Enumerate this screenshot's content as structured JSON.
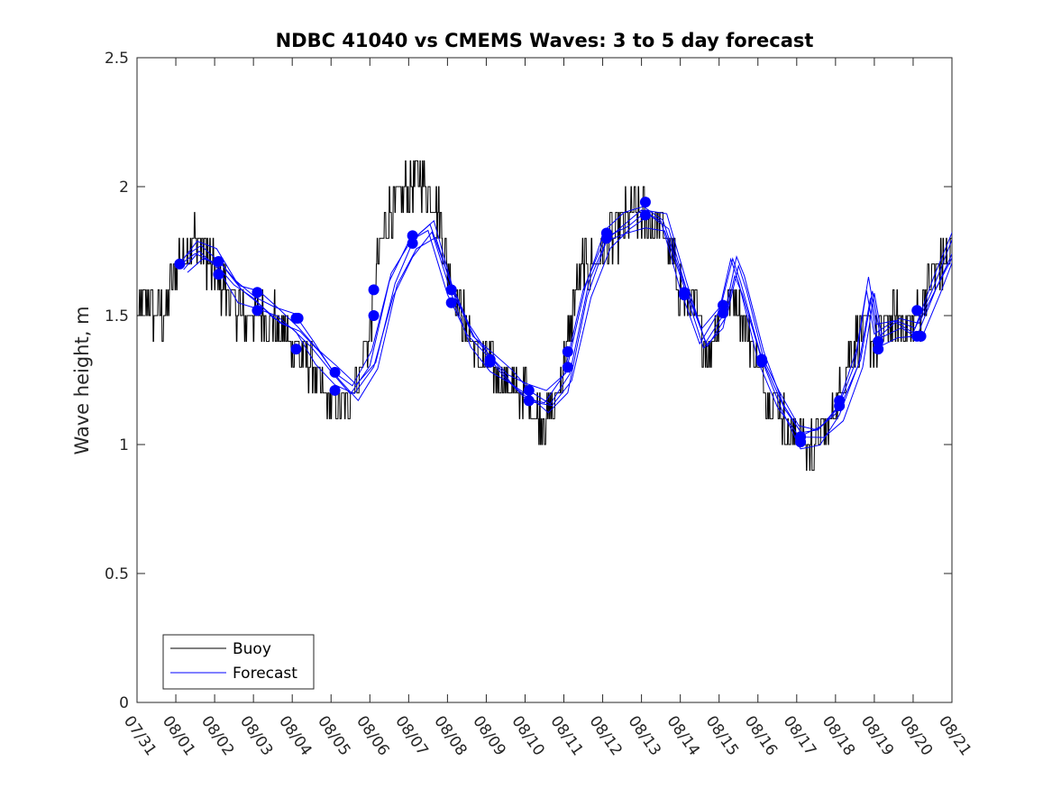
{
  "chart_data": {
    "type": "line",
    "title": "NDBC 41040 vs CMEMS Waves: 3 to 5 day forecast",
    "xlabel": "",
    "ylabel": "Wave height, m",
    "xlim": [
      0,
      21
    ],
    "ylim": [
      0,
      2.5
    ],
    "x_tick_values": [
      0,
      1,
      2,
      3,
      4,
      5,
      6,
      7,
      8,
      9,
      10,
      11,
      12,
      13,
      14,
      15,
      16,
      17,
      18,
      19,
      20,
      21
    ],
    "x_tick_labels": [
      "07/31",
      "08/01",
      "08/02",
      "08/03",
      "08/04",
      "08/05",
      "08/06",
      "08/07",
      "08/08",
      "08/09",
      "08/10",
      "08/11",
      "08/12",
      "08/13",
      "08/14",
      "08/15",
      "08/16",
      "08/17",
      "08/18",
      "08/19",
      "08/20",
      "08/21"
    ],
    "y_tick_values": [
      0,
      0.5,
      1,
      1.5,
      2,
      2.5
    ],
    "y_tick_labels": [
      "0",
      "0.5",
      "1",
      "1.5",
      "2",
      "2.5"
    ],
    "grid": false,
    "legend": {
      "position": "bottom-left",
      "entries": [
        {
          "label": "Buoy",
          "color": "#000000"
        },
        {
          "label": "Forecast",
          "color": "#0000ff"
        }
      ]
    },
    "colors": {
      "buoy": "#000000",
      "forecast": "#0000ff",
      "markers": "#0000ff",
      "axis": "#262626"
    },
    "series": [
      {
        "name": "Buoy",
        "x": [
          0.0,
          0.25,
          0.5,
          0.75,
          1.0,
          1.25,
          1.5,
          1.75,
          2.0,
          2.25,
          2.5,
          2.75,
          3.0,
          3.25,
          3.5,
          3.75,
          4.0,
          4.25,
          4.5,
          4.75,
          5.0,
          5.25,
          5.5,
          5.75,
          6.0,
          6.25,
          6.5,
          6.75,
          7.0,
          7.25,
          7.5,
          7.75,
          8.0,
          8.25,
          8.5,
          8.75,
          9.0,
          9.25,
          9.5,
          9.75,
          10.0,
          10.25,
          10.5,
          10.75,
          11.0,
          11.25,
          11.5,
          11.75,
          12.0,
          12.25,
          12.5,
          12.75,
          13.0,
          13.25,
          13.5,
          13.75,
          14.0,
          14.25,
          14.5,
          14.75,
          15.0,
          15.25,
          15.5,
          15.75,
          16.0,
          16.25,
          16.5,
          16.75,
          17.0,
          17.25,
          17.5,
          17.75,
          18.0,
          18.25,
          18.5,
          18.75,
          19.0,
          19.25,
          19.5,
          19.75,
          20.0,
          20.25,
          20.5,
          20.75,
          21.0
        ],
        "values": [
          1.5,
          1.55,
          1.5,
          1.5,
          1.7,
          1.75,
          1.8,
          1.75,
          1.65,
          1.6,
          1.55,
          1.5,
          1.5,
          1.48,
          1.5,
          1.42,
          1.4,
          1.35,
          1.3,
          1.2,
          1.15,
          1.15,
          1.2,
          1.3,
          1.45,
          1.75,
          1.9,
          1.95,
          2.0,
          2.05,
          2.0,
          1.9,
          1.7,
          1.55,
          1.45,
          1.35,
          1.3,
          1.28,
          1.25,
          1.2,
          1.2,
          1.12,
          1.1,
          1.15,
          1.3,
          1.55,
          1.7,
          1.7,
          1.75,
          1.8,
          1.85,
          1.9,
          1.9,
          1.85,
          1.85,
          1.75,
          1.6,
          1.55,
          1.45,
          1.35,
          1.5,
          1.55,
          1.55,
          1.45,
          1.3,
          1.2,
          1.15,
          1.05,
          1.05,
          1.0,
          1.0,
          1.05,
          1.15,
          1.3,
          1.4,
          1.45,
          1.4,
          1.45,
          1.5,
          1.45,
          1.45,
          1.55,
          1.65,
          1.7,
          1.75
        ]
      },
      {
        "name": "Forecast",
        "x": [
          1.1,
          1.5,
          2.0,
          2.5,
          3.0,
          3.5,
          4.0,
          4.5,
          5.0,
          5.5,
          6.0,
          6.5,
          7.0,
          7.5,
          8.0,
          8.5,
          9.0,
          9.5,
          10.0,
          10.5,
          11.0,
          11.5,
          12.0,
          12.5,
          13.0,
          13.5,
          14.0,
          14.5,
          15.0,
          15.3,
          15.5,
          16.0,
          16.5,
          17.0,
          17.5,
          18.0,
          18.5,
          18.8,
          19.0,
          19.5,
          20.0,
          20.5,
          21.0
        ],
        "values": [
          1.7,
          1.76,
          1.71,
          1.6,
          1.56,
          1.51,
          1.46,
          1.36,
          1.27,
          1.21,
          1.32,
          1.62,
          1.77,
          1.84,
          1.6,
          1.42,
          1.33,
          1.26,
          1.2,
          1.16,
          1.25,
          1.6,
          1.8,
          1.85,
          1.89,
          1.86,
          1.62,
          1.4,
          1.5,
          1.7,
          1.62,
          1.34,
          1.16,
          1.03,
          1.04,
          1.13,
          1.33,
          1.6,
          1.42,
          1.46,
          1.44,
          1.62,
          1.79
        ]
      }
    ],
    "markers": [
      {
        "x": 1.1,
        "y": 1.7
      },
      {
        "x": 2.1,
        "y": 1.71
      },
      {
        "x": 2.1,
        "y": 1.66
      },
      {
        "x": 3.1,
        "y": 1.59
      },
      {
        "x": 3.1,
        "y": 1.52
      },
      {
        "x": 4.1,
        "y": 1.49
      },
      {
        "x": 4.15,
        "y": 1.49
      },
      {
        "x": 4.1,
        "y": 1.37
      },
      {
        "x": 5.1,
        "y": 1.28
      },
      {
        "x": 5.1,
        "y": 1.21
      },
      {
        "x": 6.1,
        "y": 1.6
      },
      {
        "x": 6.1,
        "y": 1.5
      },
      {
        "x": 7.1,
        "y": 1.81
      },
      {
        "x": 7.1,
        "y": 1.78
      },
      {
        "x": 8.1,
        "y": 1.6
      },
      {
        "x": 8.1,
        "y": 1.55
      },
      {
        "x": 9.1,
        "y": 1.33
      },
      {
        "x": 9.1,
        "y": 1.32
      },
      {
        "x": 10.1,
        "y": 1.21
      },
      {
        "x": 10.1,
        "y": 1.17
      },
      {
        "x": 11.1,
        "y": 1.36
      },
      {
        "x": 11.1,
        "y": 1.3
      },
      {
        "x": 12.1,
        "y": 1.82
      },
      {
        "x": 12.1,
        "y": 1.8
      },
      {
        "x": 13.1,
        "y": 1.94
      },
      {
        "x": 13.1,
        "y": 1.89
      },
      {
        "x": 14.1,
        "y": 1.59
      },
      {
        "x": 14.1,
        "y": 1.58
      },
      {
        "x": 15.1,
        "y": 1.54
      },
      {
        "x": 15.1,
        "y": 1.51
      },
      {
        "x": 16.1,
        "y": 1.33
      },
      {
        "x": 16.1,
        "y": 1.32
      },
      {
        "x": 17.1,
        "y": 1.03
      },
      {
        "x": 17.1,
        "y": 1.01
      },
      {
        "x": 18.1,
        "y": 1.17
      },
      {
        "x": 18.1,
        "y": 1.15
      },
      {
        "x": 19.1,
        "y": 1.4
      },
      {
        "x": 19.1,
        "y": 1.37
      },
      {
        "x": 20.1,
        "y": 1.52
      },
      {
        "x": 20.1,
        "y": 1.42
      },
      {
        "x": 20.2,
        "y": 1.42
      }
    ]
  }
}
